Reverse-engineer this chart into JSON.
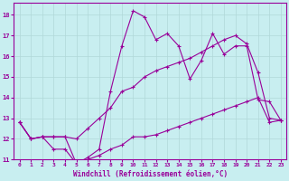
{
  "bg_color": "#c8eef0",
  "line_color": "#990099",
  "grid_color": "#b0d8d8",
  "xlim": [
    -0.5,
    23.5
  ],
  "ylim": [
    11,
    18.6
  ],
  "xticks": [
    0,
    1,
    2,
    3,
    4,
    5,
    6,
    7,
    8,
    9,
    10,
    11,
    12,
    13,
    14,
    15,
    16,
    17,
    18,
    19,
    20,
    21,
    22,
    23
  ],
  "yticks": [
    11,
    12,
    13,
    14,
    15,
    16,
    17,
    18
  ],
  "xlabel": "Windchill (Refroidissement éolien,°C)",
  "line1_x": [
    0,
    1,
    2,
    3,
    4,
    5,
    6,
    7,
    8,
    9,
    10,
    11,
    12,
    13,
    14,
    15,
    16,
    17,
    18,
    19,
    20,
    21,
    22,
    23
  ],
  "line1_y": [
    12.8,
    12.0,
    12.1,
    11.5,
    11.5,
    10.8,
    11.0,
    11.2,
    11.5,
    11.7,
    12.1,
    12.1,
    12.2,
    12.4,
    12.6,
    12.8,
    13.0,
    13.2,
    13.4,
    13.6,
    13.8,
    14.0,
    12.8,
    12.9
  ],
  "line2_x": [
    0,
    1,
    2,
    3,
    4,
    5,
    6,
    7,
    8,
    9,
    10,
    11,
    12,
    13,
    14,
    15,
    16,
    17,
    18,
    19,
    20,
    21,
    22,
    23
  ],
  "line2_y": [
    12.8,
    12.0,
    12.1,
    12.1,
    12.1,
    12.0,
    12.5,
    13.0,
    13.5,
    14.3,
    14.5,
    15.0,
    15.3,
    15.5,
    15.7,
    15.9,
    16.2,
    16.5,
    16.8,
    17.0,
    16.6,
    15.2,
    13.0,
    12.9
  ],
  "line3_x": [
    0,
    1,
    2,
    3,
    4,
    5,
    6,
    7,
    8,
    9,
    10,
    11,
    12,
    13,
    14,
    15,
    16,
    17,
    18,
    19,
    20,
    21,
    22,
    23
  ],
  "line3_y": [
    12.8,
    12.0,
    12.1,
    12.1,
    12.1,
    10.8,
    11.1,
    11.5,
    14.3,
    16.5,
    18.2,
    17.9,
    16.8,
    17.1,
    16.5,
    14.9,
    15.8,
    17.1,
    16.1,
    16.5,
    16.5,
    13.9,
    13.8,
    12.9
  ]
}
